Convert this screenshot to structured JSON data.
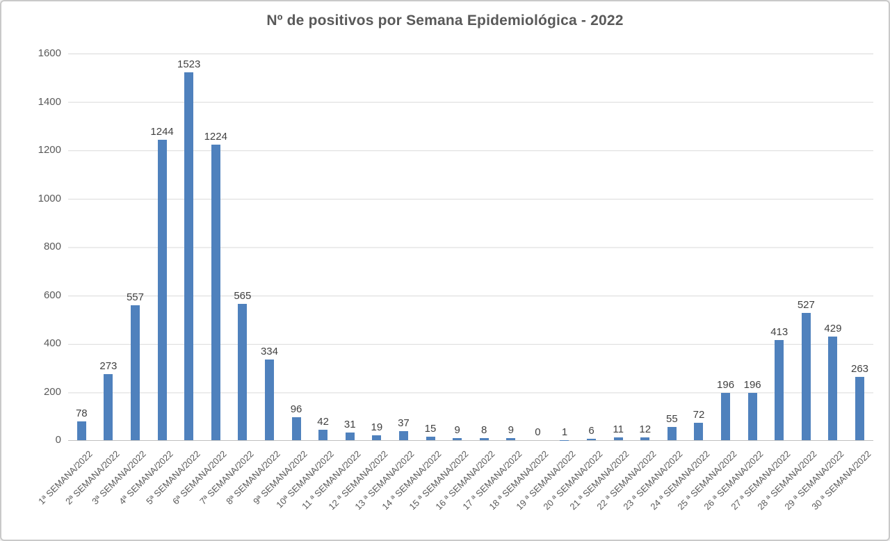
{
  "title": "Nº de positivos por Semana Epidemiológica - 2022",
  "colors": {
    "bar": "#4f81bd",
    "gridline": "#d9d9d9",
    "axis_line": "#c0c0c0",
    "tick_text": "#595959",
    "data_label_text": "#404040",
    "title_text": "#595959",
    "frame_border": "#c9c9c9",
    "background": "#ffffff"
  },
  "chart_data": {
    "type": "bar",
    "title": "Nº de positivos por Semana Epidemiológica - 2022",
    "xlabel": "",
    "ylabel": "",
    "ylim": [
      0,
      1600
    ],
    "yticks": [
      0,
      200,
      400,
      600,
      800,
      1000,
      1200,
      1400,
      1600
    ],
    "grid": true,
    "legend": "none",
    "data_labels": true,
    "bar_color": "#4f81bd",
    "categories": [
      "1ª SEMANA/2022",
      "2ª SEMANA/2022",
      "3ª SEMANA/2022",
      "4ª SEMANA/2022",
      "5ª SEMANA/2022",
      "6ª SEMANA/2022",
      "7ª SEMANA/2022",
      "8ª SEMANA/2022",
      "9ª SEMANA/2022",
      "10ª SEMANA/2022",
      "11 ª SEMANA/2022",
      "12 ª SEMANA/2022",
      "13 ª SEMANA/2022",
      "14 ª SEMANA/2022",
      "15 ª SEMANA/2022",
      "16 ª SEMANA/2022",
      "17 ª SEMANA/2022",
      "18 ª SEMANA/2022",
      "19 ª SEMANA/2022",
      "20 ª SEMANA/2022",
      "21 ª SEMANA/2022",
      "22 ª SEMANA/2022",
      "23 ª SEMANA/2022",
      "24 ª SEMANA/2022",
      "25 ª SEMANA/2022",
      "26 ª SEMANA/2022",
      "27 ª SEMANA/2022",
      "28 ª SEMANA/2022",
      "29 ª SEMANA/2022",
      "30 ª SEMANA/2022"
    ],
    "values": [
      78,
      273,
      557,
      1244,
      1523,
      1224,
      565,
      334,
      96,
      42,
      31,
      19,
      37,
      15,
      9,
      8,
      9,
      0,
      1,
      6,
      11,
      12,
      55,
      72,
      196,
      196,
      413,
      527,
      429,
      263
    ]
  }
}
